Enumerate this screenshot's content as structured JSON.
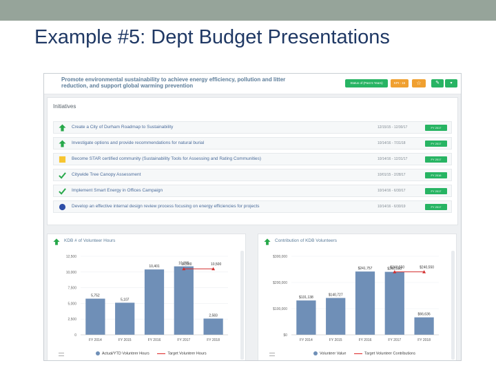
{
  "slide": {
    "title": "Example #5: Dept Budget Presentations"
  },
  "goal": {
    "text": "Promote environmental sustainability to achieve energy efficiency, pollution and litter reduction, and support global warming prevention",
    "subtext": "Initiatives",
    "buttons": {
      "status": "Status of (Past 5 Years)",
      "kpi": "KPI - 15",
      "star": "☆",
      "edit": "✎",
      "more": "▾"
    }
  },
  "initiatives": {
    "title": "Initiatives",
    "rows": [
      {
        "text": "Create a City of Durham Roadmap to Sustainability",
        "dates": "12/15/15 - 12/30/17",
        "badge": "FY 2017",
        "icon": "up-arrow-icon"
      },
      {
        "text": "Investigate options and provide recommendations for natural burial",
        "dates": "10/14/16 - 7/31/18",
        "badge": "FY 2017",
        "icon": "up-arrow-icon"
      },
      {
        "text": "Become STAR certified community (Sustainability Tools for Assessing and Rating Communities)",
        "dates": "10/14/16 - 12/31/17",
        "badge": "FY 2017",
        "icon": "yellow-square-icon"
      },
      {
        "text": "Citywide Tree Canopy Assessment",
        "dates": "10/01/15 - 2/28/17",
        "badge": "FY 2016",
        "icon": "checkmark-icon"
      },
      {
        "text": "Implement Smart Energy in Offices Campaign",
        "dates": "10/14/16 - 6/30/17",
        "badge": "FY 2017",
        "icon": "checkmark-icon"
      },
      {
        "text": "Develop an effective internal design review process focusing on energy efficiencies for projects",
        "dates": "10/14/16 - 6/30/19",
        "badge": "FY 2017",
        "icon": "blue-circle-icon"
      }
    ]
  },
  "colors": {
    "bar": "#6f8fb7",
    "target": "#d22d2d",
    "badge": "#27b463",
    "arrow_green": "#27a84a"
  },
  "chart_data": [
    {
      "type": "bar",
      "title": "KDB # of Volunteer Hours",
      "categories": [
        "FY 2014",
        "FY 2015",
        "FY 2016",
        "FY 2017",
        "FY 2018"
      ],
      "ylim": [
        0,
        12500
      ],
      "yticks": [
        "12,500",
        "10,000",
        "7,500",
        "5,000",
        "2,500",
        "0"
      ],
      "series": [
        {
          "name": "Actual/YTD Volunteer Hours",
          "values": [
            5752,
            5107,
            10401,
            10895,
            2583
          ],
          "labels": [
            "5,752",
            "5,107",
            "10,401",
            "10,895",
            "2,583"
          ]
        },
        {
          "name": "Target Volunteer Hours",
          "values": [
            null,
            null,
            null,
            10500,
            10500
          ],
          "labels": [
            "",
            "",
            "",
            "10,500",
            "10,500"
          ]
        }
      ]
    },
    {
      "type": "bar",
      "title": "Contribution of KDB Volunteers",
      "categories": [
        "FY 2014",
        "FY 2015",
        "FY 2016",
        "FY 2017",
        "FY 2018"
      ],
      "ylim": [
        0,
        300000
      ],
      "yticks": [
        "$300,000",
        "$200,000",
        "$100,000",
        "$0"
      ],
      "series": [
        {
          "name": "Volunteer Value",
          "values": [
            131138,
            140727,
            241757,
            240550,
            66636
          ],
          "labels": [
            "$131,138",
            "$140,727",
            "$241,757",
            "$240,550",
            "$66,636"
          ]
        },
        {
          "name": "Target Volunteer Contributions",
          "values": [
            null,
            null,
            null,
            240550,
            240550
          ],
          "labels": [
            "",
            "",
            "",
            "$240,550",
            "$240,550"
          ]
        }
      ]
    }
  ]
}
